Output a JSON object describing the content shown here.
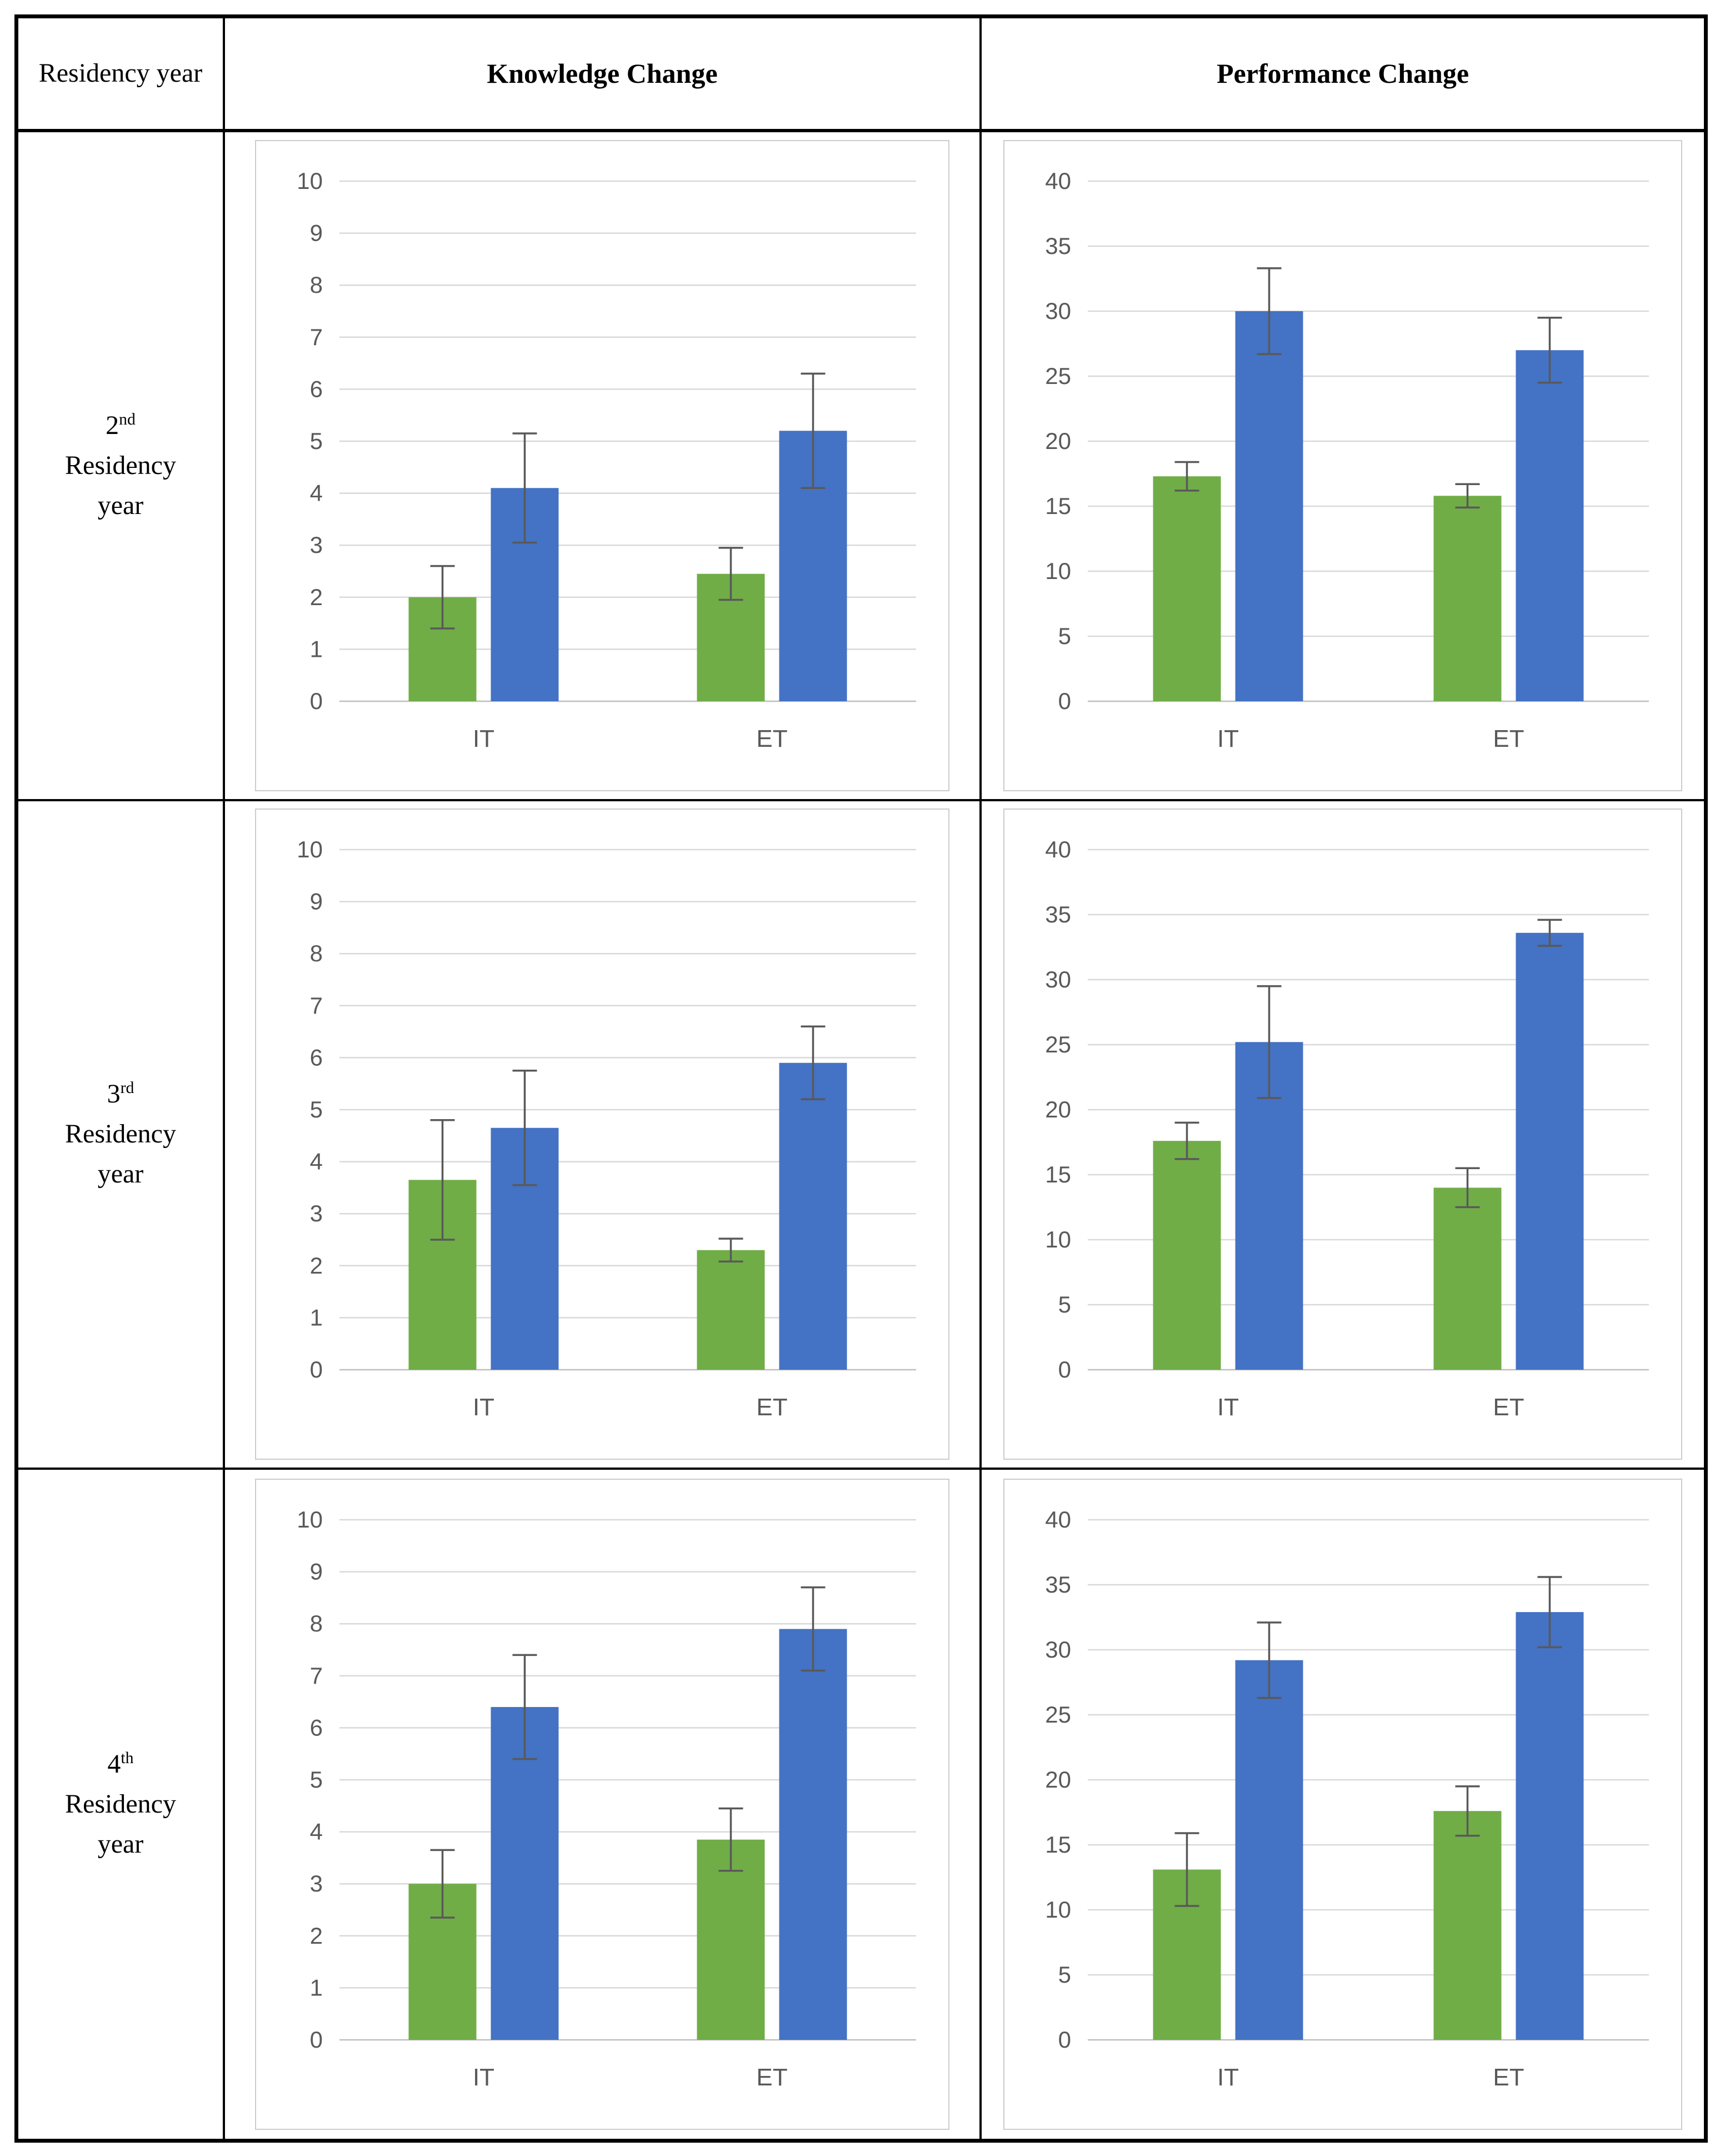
{
  "header": {
    "col1_line1": "Residency",
    "col1_line2": "year",
    "col2": "Knowledge Change",
    "col3": "Performance Change"
  },
  "rows": [
    {
      "ordinal": "2",
      "suffix": "nd",
      "label_line2": "Residency",
      "label_line3": "year"
    },
    {
      "ordinal": "3",
      "suffix": "rd",
      "label_line2": "Residency",
      "label_line3": "year"
    },
    {
      "ordinal": "4",
      "suffix": "th",
      "label_line2": "Residency",
      "label_line3": "year"
    }
  ],
  "colors": {
    "green_bar": "#70AD47",
    "blue_bar": "#4472C4",
    "gridline": "#D9D9D9",
    "axis_line": "#BFBFBF",
    "tick_text": "#595959",
    "error_bar": "#595959",
    "panel_border": "#CCCCCC"
  },
  "chart_data": [
    {
      "id": "knowledge-2nd-year",
      "type": "bar",
      "row_label": "2nd Residency year",
      "column_label": "Knowledge Change",
      "categories": [
        "IT",
        "ET"
      ],
      "ylim": [
        0,
        10
      ],
      "ytick_step": 1,
      "grid": true,
      "legend": "none",
      "series": [
        {
          "name": "green-series",
          "color": "#70AD47",
          "values": [
            2.0,
            2.45
          ],
          "errors": [
            0.6,
            0.5
          ]
        },
        {
          "name": "blue-series",
          "color": "#4472C4",
          "values": [
            4.1,
            5.2
          ],
          "errors": [
            1.05,
            1.1
          ]
        }
      ]
    },
    {
      "id": "performance-2nd-year",
      "type": "bar",
      "row_label": "2nd Residency year",
      "column_label": "Performance Change",
      "categories": [
        "IT",
        "ET"
      ],
      "ylim": [
        0,
        40
      ],
      "ytick_step": 5,
      "grid": true,
      "legend": "none",
      "series": [
        {
          "name": "green-series",
          "color": "#70AD47",
          "values": [
            17.3,
            15.8
          ],
          "errors": [
            1.1,
            0.9
          ]
        },
        {
          "name": "blue-series",
          "color": "#4472C4",
          "values": [
            30.0,
            27.0
          ],
          "errors": [
            3.3,
            2.5
          ]
        }
      ]
    },
    {
      "id": "knowledge-3rd-year",
      "type": "bar",
      "row_label": "3rd Residency year",
      "column_label": "Knowledge Change",
      "categories": [
        "IT",
        "ET"
      ],
      "ylim": [
        0,
        10
      ],
      "ytick_step": 1,
      "grid": true,
      "legend": "none",
      "series": [
        {
          "name": "green-series",
          "color": "#70AD47",
          "values": [
            3.65,
            2.3
          ],
          "errors": [
            1.15,
            0.22
          ]
        },
        {
          "name": "blue-series",
          "color": "#4472C4",
          "values": [
            4.65,
            5.9
          ],
          "errors": [
            1.1,
            0.7
          ]
        }
      ]
    },
    {
      "id": "performance-3rd-year",
      "type": "bar",
      "row_label": "3rd Residency year",
      "column_label": "Performance Change",
      "categories": [
        "IT",
        "ET"
      ],
      "ylim": [
        0,
        40
      ],
      "ytick_step": 5,
      "grid": true,
      "legend": "none",
      "series": [
        {
          "name": "green-series",
          "color": "#70AD47",
          "values": [
            17.6,
            14.0
          ],
          "errors": [
            1.4,
            1.5
          ]
        },
        {
          "name": "blue-series",
          "color": "#4472C4",
          "values": [
            25.2,
            33.6
          ],
          "errors": [
            4.3,
            1.0
          ]
        }
      ]
    },
    {
      "id": "knowledge-4th-year",
      "type": "bar",
      "row_label": "4th Residency year",
      "column_label": "Knowledge Change",
      "categories": [
        "IT",
        "ET"
      ],
      "ylim": [
        0,
        10
      ],
      "ytick_step": 1,
      "grid": true,
      "legend": "none",
      "series": [
        {
          "name": "green-series",
          "color": "#70AD47",
          "values": [
            3.0,
            3.85
          ],
          "errors": [
            0.65,
            0.6
          ]
        },
        {
          "name": "blue-series",
          "color": "#4472C4",
          "values": [
            6.4,
            7.9
          ],
          "errors": [
            1.0,
            0.8
          ]
        }
      ]
    },
    {
      "id": "performance-4th-year",
      "type": "bar",
      "row_label": "4th Residency year",
      "column_label": "Performance Change",
      "categories": [
        "IT",
        "ET"
      ],
      "ylim": [
        0,
        40
      ],
      "ytick_step": 5,
      "grid": true,
      "legend": "none",
      "series": [
        {
          "name": "green-series",
          "color": "#70AD47",
          "values": [
            13.1,
            17.6
          ],
          "errors": [
            2.8,
            1.9
          ]
        },
        {
          "name": "blue-series",
          "color": "#4472C4",
          "values": [
            29.2,
            32.9
          ],
          "errors": [
            2.9,
            2.7
          ]
        }
      ]
    }
  ]
}
